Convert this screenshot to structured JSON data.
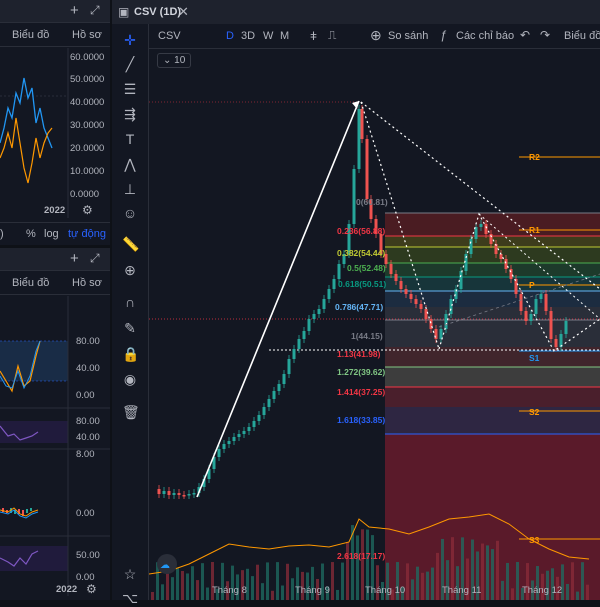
{
  "top_left": {
    "tb_label_1": "Biểu đồ",
    "tb_label_2": "Hồ sơ",
    "y_ticks": [
      "60.0000",
      "50.0000",
      "40.0000",
      "30.0000",
      "20.0000",
      "10.0000",
      "0.0000"
    ],
    "x_label": "2022",
    "pct": "%",
    "log": "log",
    "auto": "tự động"
  },
  "bottom_left": {
    "tb_label_1": "Biểu đồ",
    "tb_label_2": "Hồ sơ",
    "y_ticks_1": [
      "80.00",
      "40.00",
      "0.00"
    ],
    "y_ticks_2": [
      "80.00",
      "40.00"
    ],
    "y_ticks_3": [
      "8.00",
      "0.00"
    ],
    "y_ticks_4": [
      "50.00",
      "0.00"
    ],
    "x_label": "2022"
  },
  "main": {
    "tab_title": "CSV (1D)",
    "symbol": "CSV",
    "intervals": [
      "D",
      "3D",
      "W",
      "M"
    ],
    "compare": "So sánh",
    "indicators": "Các chỉ báo",
    "chart_menu": "Biểu đồ",
    "drawings_count": "10",
    "x_labels": [
      "Tháng 8",
      "Tháng 9",
      "Tháng 10",
      "Tháng 11",
      "Tháng 12"
    ],
    "fib_levels": [
      {
        "label": "0(60.81)",
        "color": "#787b86"
      },
      {
        "label": "0.236(56.88)",
        "color": "#f23645"
      },
      {
        "label": "0.382(54.44)",
        "color": "#c0ca33"
      },
      {
        "label": "0.5(52.48)",
        "color": "#4caf50"
      },
      {
        "label": "0.618(50.51)",
        "color": "#089981"
      },
      {
        "label": "0.786(47.71)",
        "color": "#64b5f6"
      },
      {
        "label": "1(44.15)",
        "color": "#787b86"
      },
      {
        "label": "1.13(41.98)",
        "color": "#f23645"
      },
      {
        "label": "1.272(39.62)",
        "color": "#81c784"
      },
      {
        "label": "1.414(37.25)",
        "color": "#f23645"
      },
      {
        "label": "1.618(33.85)",
        "color": "#2962ff"
      },
      {
        "label": "2.618(17.17)",
        "color": "#f23645"
      }
    ],
    "pivots": {
      "r2": "R2",
      "r1": "R1",
      "p": "P",
      "s1": "S1",
      "s2": "S2",
      "s3": "S3"
    }
  }
}
